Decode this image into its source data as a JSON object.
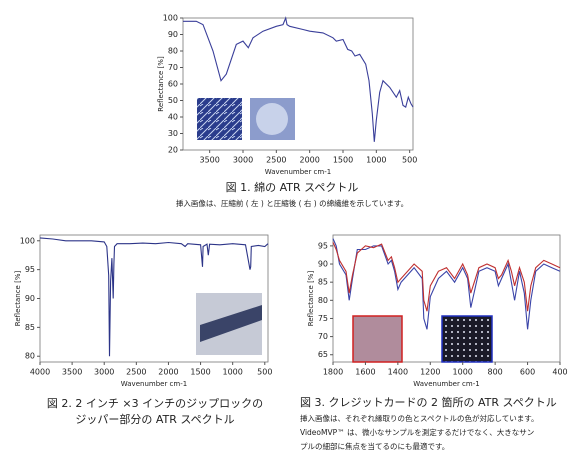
{
  "chart_data": [
    {
      "type": "line",
      "x_label": "Wavenumber cm-1",
      "y_label": "Reflectance [%]",
      "xlim": [
        3900,
        450
      ],
      "xticks": [
        3500,
        3000,
        2500,
        2000,
        1500,
        1000,
        500
      ],
      "ylim": [
        20,
        100
      ],
      "yticks": [
        20,
        30,
        40,
        50,
        60,
        70,
        80,
        90,
        100
      ],
      "x": [
        3900,
        3700,
        3600,
        3450,
        3330,
        3250,
        3100,
        3000,
        2920,
        2850,
        2700,
        2500,
        2400,
        2360,
        2340,
        2300,
        2100,
        2000,
        1800,
        1650,
        1600,
        1500,
        1430,
        1370,
        1320,
        1250,
        1160,
        1110,
        1060,
        1030,
        1000,
        950,
        900,
        800,
        700,
        650,
        600,
        560,
        520,
        480,
        450
      ],
      "series": [
        {
          "color": "#3a3f9a",
          "values": [
            98,
            98,
            96,
            80,
            62,
            66,
            84,
            86,
            82,
            88,
            92,
            95,
            96,
            100,
            96,
            95,
            93,
            92,
            91,
            88,
            86,
            87,
            81,
            80,
            77,
            78,
            72,
            62,
            42,
            25,
            38,
            55,
            62,
            58,
            52,
            56,
            47,
            46,
            52,
            48,
            46
          ]
        }
      ],
      "caption": [
        "図 1. 綿の ATR スペクトル"
      ],
      "note": [
        "挿入画像は、圧縮前 ( 左 ) と圧縮後 ( 右 ) の綿繊維を示しています。"
      ]
    },
    {
      "type": "line",
      "x_label": "Wavenumber cm-1",
      "y_label": "Reflectance [%]",
      "xlim": [
        4000,
        450
      ],
      "xticks": [
        4000,
        3500,
        3000,
        2500,
        2000,
        1500,
        1000,
        500
      ],
      "ylim": [
        79,
        101
      ],
      "yticks": [
        80,
        85,
        90,
        95,
        100
      ],
      "x": [
        4000,
        3800,
        3600,
        3400,
        3200,
        3000,
        2960,
        2930,
        2918,
        2900,
        2880,
        2860,
        2850,
        2840,
        2800,
        2600,
        2400,
        2200,
        2000,
        1800,
        1740,
        1700,
        1500,
        1470,
        1460,
        1400,
        1380,
        1360,
        1200,
        1000,
        800,
        730,
        720,
        710,
        600,
        500,
        450
      ],
      "series": [
        {
          "color": "#2c3488",
          "values": [
            100.5,
            100.3,
            100,
            100,
            100,
            99.8,
            99,
            94,
            80,
            93,
            97,
            90,
            96,
            99,
            99.5,
            99.5,
            99.6,
            99.5,
            99.7,
            99.5,
            99,
            99.5,
            99.3,
            95.5,
            99,
            99.4,
            97.5,
            99.4,
            99.3,
            99.5,
            99.3,
            95,
            95.5,
            99,
            99.2,
            99,
            99.5
          ]
        }
      ],
      "caption": [
        "図 2. 2 インチ ×3 インチのジップロックの",
        "ジッパー部分の ATR スペクトル"
      ],
      "note": []
    },
    {
      "type": "line",
      "x_label": "Wavenumber cm-1",
      "y_label": "Reflectance [%]",
      "xlim": [
        1800,
        400
      ],
      "xticks": [
        1800,
        1600,
        1400,
        1200,
        1000,
        800,
        600,
        400
      ],
      "ylim": [
        63,
        98
      ],
      "yticks": [
        65,
        70,
        75,
        80,
        85,
        90,
        95
      ],
      "x": [
        1800,
        1780,
        1760,
        1720,
        1700,
        1680,
        1650,
        1600,
        1550,
        1500,
        1460,
        1440,
        1420,
        1400,
        1380,
        1300,
        1250,
        1240,
        1220,
        1200,
        1150,
        1100,
        1050,
        1000,
        970,
        950,
        900,
        850,
        800,
        780,
        760,
        720,
        700,
        680,
        650,
        620,
        600,
        580,
        550,
        500,
        450,
        400
      ],
      "series": [
        {
          "color": "#3a44a8",
          "values": [
            97,
            95,
            90,
            87,
            80,
            86,
            94,
            94,
            95,
            95,
            90,
            91,
            88,
            83,
            85,
            89,
            86,
            75,
            72,
            81,
            86,
            88,
            85,
            89,
            86,
            78,
            88,
            89,
            88,
            84,
            86,
            90,
            85,
            80,
            88,
            82,
            72,
            80,
            88,
            90,
            89,
            88
          ]
        },
        {
          "color": "#c03030",
          "values": [
            96,
            94,
            91,
            88,
            82,
            87,
            93,
            95,
            94.5,
            95.5,
            91,
            92,
            89,
            85,
            86,
            90,
            88,
            80,
            77,
            84,
            88,
            89,
            86,
            90,
            87,
            82,
            89,
            90,
            89,
            86,
            87,
            91,
            88,
            84,
            89,
            85,
            77,
            84,
            89,
            91,
            90,
            89
          ]
        }
      ],
      "caption": [
        "図 3. クレジットカードの 2 箇所の ATR スペクトル"
      ],
      "note": [
        "挿入画像は、それぞれ縁取りの色とスペクトルの色が対応しています。",
        "VideoMVP™ は、微小なサンプルを測定するだけでなく、大きなサン",
        "プルの細部に焦点を当てるのにも最適です。"
      ]
    }
  ]
}
